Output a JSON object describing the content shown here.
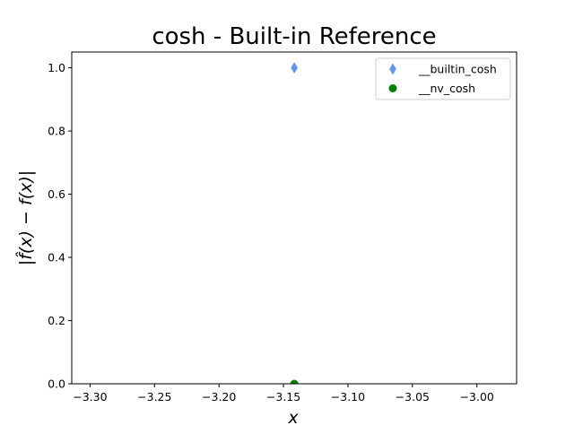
{
  "chart_data": {
    "type": "scatter",
    "title": "cosh - Built-in Reference",
    "xlabel": "x",
    "ylabel": "|f̂(x) − f(x)|",
    "xlim": [
      -3.3142,
      -2.9692
    ],
    "ylim": [
      0.0,
      1.05
    ],
    "xticks": [
      -3.3,
      -3.25,
      -3.2,
      -3.15,
      -3.1,
      -3.05,
      -3.0
    ],
    "xtick_labels": [
      "−3.30",
      "−3.25",
      "−3.20",
      "−3.15",
      "−3.10",
      "−3.05",
      "−3.00"
    ],
    "yticks": [
      0.0,
      0.2,
      0.4,
      0.6,
      0.8,
      1.0
    ],
    "ytick_labels": [
      "0.0",
      "0.2",
      "0.4",
      "0.6",
      "0.8",
      "1.0"
    ],
    "grid": false,
    "legend_position": "top-right",
    "series": [
      {
        "name": "__builtin_cosh",
        "marker": "thin-diamond",
        "color": "#6495ED",
        "x": [
          -3.1416
        ],
        "y": [
          1.0
        ]
      },
      {
        "name": "__nv_cosh",
        "marker": "circle",
        "color": "#008000",
        "x": [
          -3.1416
        ],
        "y": [
          0.0
        ]
      }
    ]
  }
}
